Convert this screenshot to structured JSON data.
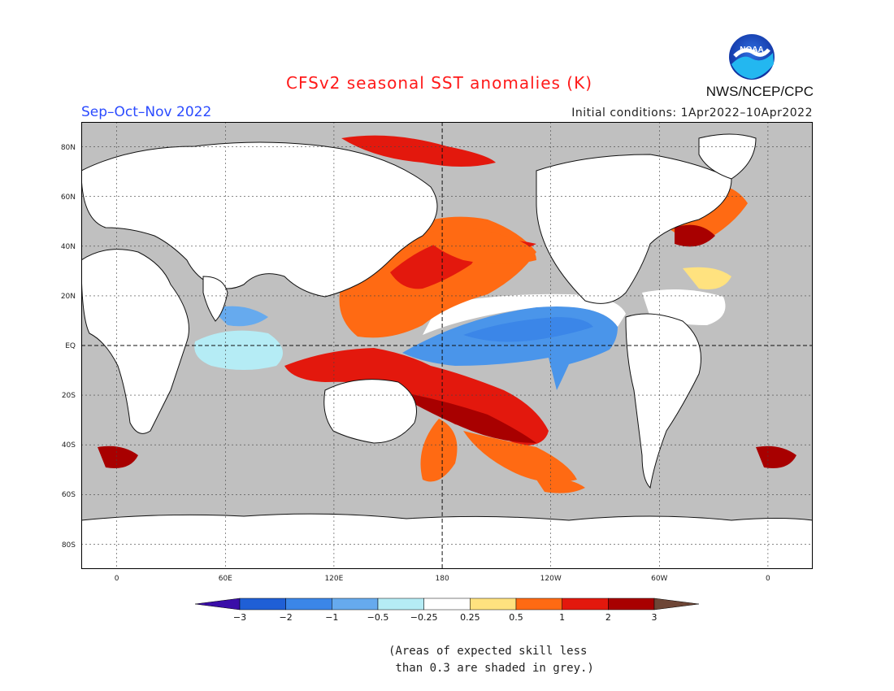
{
  "title": "CFSv2 seasonal SST anomalies (K)",
  "season": "Sep–Oct–Nov 2022",
  "initial_conditions": "Initial conditions: 1Apr2022–10Apr2022",
  "agency": "NWS/NCEP/CPC",
  "logo": {
    "text": "NOAA",
    "icon": "noaa-logo-icon"
  },
  "map": {
    "lon_labels": [
      "0",
      "60E",
      "120E",
      "180",
      "120W",
      "60W",
      "0"
    ],
    "lat_labels": [
      "80N",
      "60N",
      "40N",
      "20N",
      "EQ",
      "20S",
      "40S",
      "60S",
      "80S"
    ],
    "colors": {
      "land": "#ffffff",
      "coast": "#111111",
      "no_skill": "#c0c0c0"
    }
  },
  "legend": {
    "tick_labels": [
      "−3",
      "−2",
      "−1",
      "−0.5",
      "−0.25",
      "0.25",
      "0.5",
      "1",
      "2",
      "3"
    ],
    "colors": [
      "#3a0ea8",
      "#1f5fd6",
      "#3b86e8",
      "#66aaee",
      "#b5ecf5",
      "#ffffff",
      "#ffe27f",
      "#ff6a13",
      "#e3180d",
      "#a80000",
      "#6e4636"
    ]
  },
  "note": {
    "line1": "(Areas of expected skill less",
    "line2": " than 0.3 are shaded in grey.)"
  }
}
